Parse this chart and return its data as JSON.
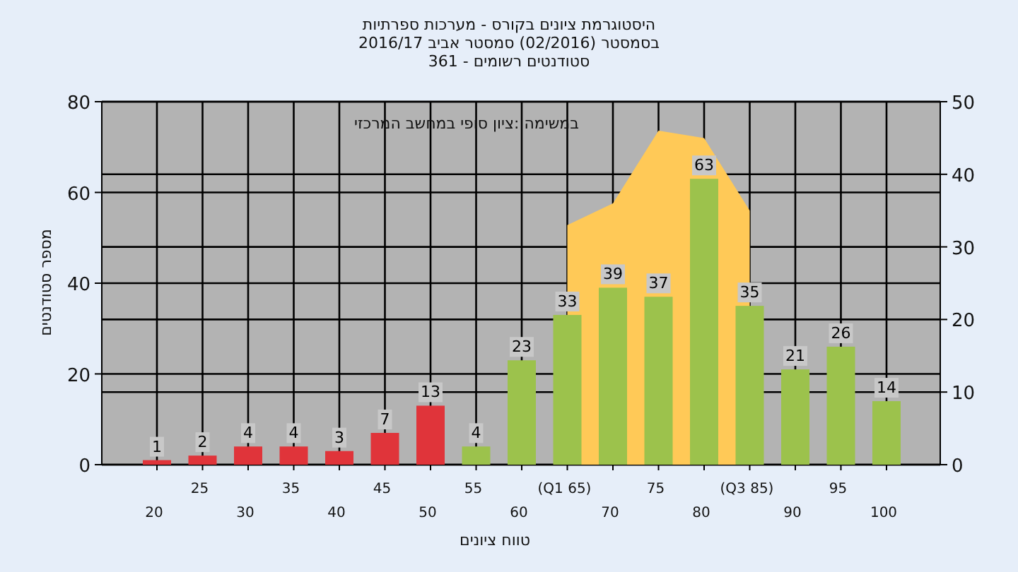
{
  "chart_data": {
    "type": "bar",
    "title": "היסטוגרמת ציונים בקורס - מערכות ספרתיות",
    "subtitle": "בסמסטר  (02/2016)  סמסטר אביב 2016/17",
    "annotations": [
      "סטודנטים רשומים - 361",
      "במשימה :ציון סופי במחשב המרכזי"
    ],
    "xlabel": "טווח ציונים",
    "ylabel": "מספר סטודנטים",
    "categories": [
      "20",
      "25",
      "30",
      "35",
      "40",
      "45",
      "50",
      "55",
      "60",
      "(Q1 65)",
      "70",
      "75",
      "80",
      "(Q3 85)",
      "90",
      "95",
      "100"
    ],
    "series": [
      {
        "type": "area",
        "axis": "y2",
        "color": "#ffc957",
        "values": [
          null,
          null,
          null,
          null,
          null,
          null,
          null,
          null,
          null,
          33,
          36,
          46,
          45,
          35,
          null,
          null,
          null
        ]
      },
      {
        "colors": [
          "#e0343a",
          "#e0343a",
          "#e0343a",
          "#e0343a",
          "#e0343a",
          "#e0343a",
          "#e0343a",
          "#9cc24c",
          "#9cc24c",
          "#9cc24c",
          "#9cc24c",
          "#9cc24c",
          "#9cc24c",
          "#9cc24c",
          "#9cc24c",
          "#9cc24c",
          "#9cc24c"
        ],
        "values": [
          1,
          2,
          4,
          4,
          3,
          7,
          13,
          4,
          23,
          33,
          39,
          37,
          63,
          35,
          21,
          26,
          14
        ],
        "value_labels": [
          "1",
          "2",
          "4",
          "4",
          "3",
          "7",
          "13",
          "4",
          "23",
          "33",
          "39",
          "37",
          "63",
          "35",
          "21",
          "26",
          "14"
        ]
      }
    ],
    "grid": true,
    "ylim": [
      0,
      80
    ],
    "yticks": [
      0,
      20,
      40,
      60,
      80
    ],
    "y2lim": [
      0,
      50
    ],
    "y2ticks": [
      0,
      10,
      20,
      30,
      40,
      50
    ]
  }
}
